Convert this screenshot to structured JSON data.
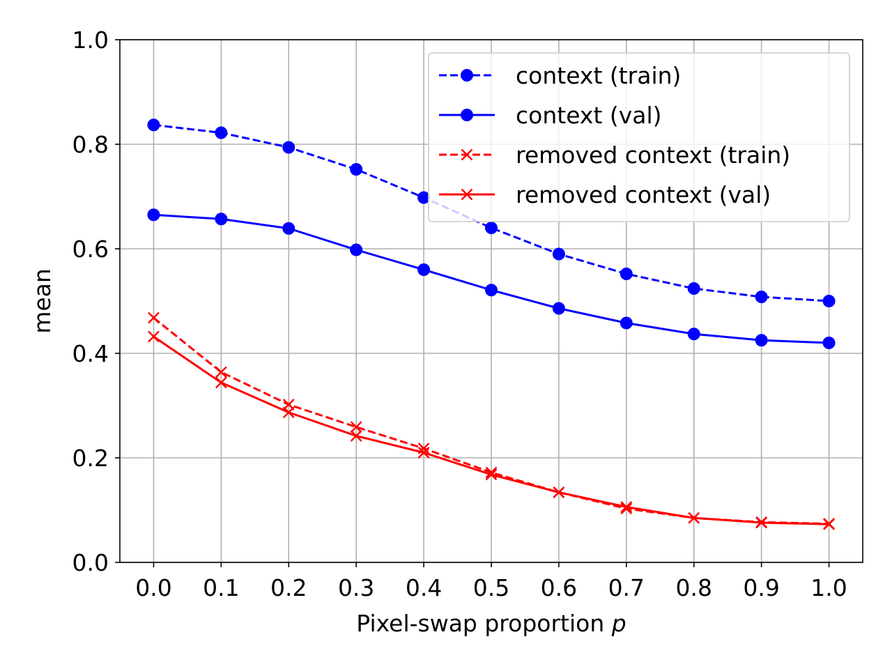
{
  "chart_data": {
    "type": "line",
    "title": "",
    "xlabel": "Pixel-swap proportion",
    "xlabel_var": "p",
    "ylabel": "mean",
    "x": [
      0.0,
      0.1,
      0.2,
      0.3,
      0.4,
      0.5,
      0.6,
      0.7,
      0.8,
      0.9,
      1.0
    ],
    "xtick_labels": [
      "0.0",
      "0.1",
      "0.2",
      "0.3",
      "0.4",
      "0.5",
      "0.6",
      "0.7",
      "0.8",
      "0.9",
      "1.0"
    ],
    "yticks": [
      0.0,
      0.2,
      0.4,
      0.6,
      0.8,
      1.0
    ],
    "ytick_labels": [
      "0.0",
      "0.2",
      "0.4",
      "0.6",
      "0.8",
      "1.0"
    ],
    "xlim": [
      -0.05,
      1.05
    ],
    "ylim": [
      0.0,
      1.0
    ],
    "grid": true,
    "legend_position": "top-right",
    "series": [
      {
        "name": "context (train)",
        "color": "#0000ff",
        "linestyle": "dashed",
        "marker": "circle",
        "values": [
          0.837,
          0.822,
          0.794,
          0.752,
          0.698,
          0.64,
          0.59,
          0.552,
          0.524,
          0.508,
          0.5
        ]
      },
      {
        "name": "context (val)",
        "color": "#0000ff",
        "linestyle": "solid",
        "marker": "circle",
        "values": [
          0.665,
          0.657,
          0.639,
          0.598,
          0.56,
          0.521,
          0.486,
          0.458,
          0.437,
          0.425,
          0.42
        ]
      },
      {
        "name": "removed context (train)",
        "color": "#ff0000",
        "linestyle": "dashed",
        "marker": "x",
        "values": [
          0.468,
          0.364,
          0.302,
          0.259,
          0.218,
          0.172,
          0.134,
          0.103,
          0.085,
          0.077,
          0.074
        ]
      },
      {
        "name": "removed context (val)",
        "color": "#ff0000",
        "linestyle": "solid",
        "marker": "x",
        "values": [
          0.432,
          0.344,
          0.287,
          0.242,
          0.21,
          0.168,
          0.134,
          0.106,
          0.085,
          0.076,
          0.073
        ]
      }
    ]
  }
}
